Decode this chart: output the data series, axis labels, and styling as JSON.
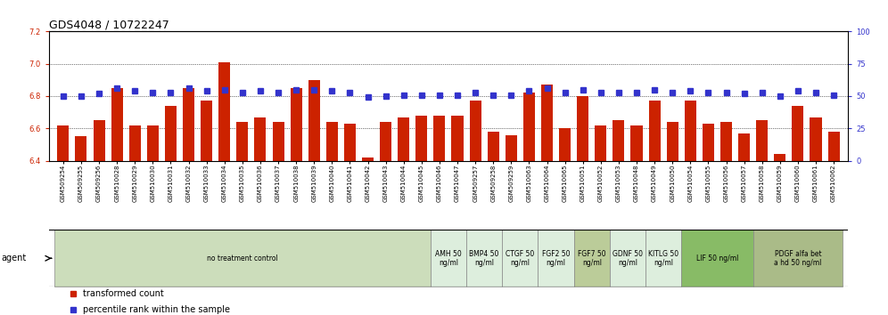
{
  "title": "GDS4048 / 10722247",
  "samples": [
    "GSM509254",
    "GSM509255",
    "GSM509256",
    "GSM510028",
    "GSM510029",
    "GSM510030",
    "GSM510031",
    "GSM510032",
    "GSM510033",
    "GSM510034",
    "GSM510035",
    "GSM510036",
    "GSM510037",
    "GSM510038",
    "GSM510039",
    "GSM510040",
    "GSM510041",
    "GSM510042",
    "GSM510043",
    "GSM510044",
    "GSM510045",
    "GSM510046",
    "GSM510047",
    "GSM509257",
    "GSM509258",
    "GSM509259",
    "GSM510063",
    "GSM510064",
    "GSM510065",
    "GSM510051",
    "GSM510052",
    "GSM510053",
    "GSM510048",
    "GSM510049",
    "GSM510050",
    "GSM510054",
    "GSM510055",
    "GSM510056",
    "GSM510057",
    "GSM510058",
    "GSM510059",
    "GSM510060",
    "GSM510061",
    "GSM510062"
  ],
  "bar_values": [
    6.62,
    6.55,
    6.65,
    6.85,
    6.62,
    6.62,
    6.74,
    6.85,
    6.77,
    7.01,
    6.64,
    6.67,
    6.64,
    6.85,
    6.9,
    6.64,
    6.63,
    6.42,
    6.64,
    6.67,
    6.68,
    6.68,
    6.68,
    6.77,
    6.58,
    6.56,
    6.82,
    6.87,
    6.6,
    6.8,
    6.62,
    6.65,
    6.62,
    6.77,
    6.64,
    6.77,
    6.63,
    6.64,
    6.57,
    6.65,
    6.44,
    6.74,
    6.67,
    6.58
  ],
  "dot_values": [
    50,
    50,
    52,
    56,
    54,
    53,
    53,
    56,
    54,
    55,
    53,
    54,
    53,
    55,
    55,
    54,
    53,
    49,
    50,
    51,
    51,
    51,
    51,
    53,
    51,
    51,
    54,
    56,
    53,
    55,
    53,
    53,
    53,
    55,
    53,
    54,
    53,
    53,
    52,
    53,
    50,
    54,
    53,
    51
  ],
  "ylim_left": [
    6.4,
    7.2
  ],
  "ylim_right": [
    0,
    100
  ],
  "yticks_left": [
    6.4,
    6.6,
    6.8,
    7.0,
    7.2
  ],
  "yticks_right": [
    0,
    25,
    50,
    75,
    100
  ],
  "bar_color": "#CC2200",
  "dot_color": "#3333CC",
  "agent_groups": [
    {
      "label": "no treatment control",
      "start": 0,
      "end": 21,
      "color": "#DDEECC"
    },
    {
      "label": "AMH 50\nng/ml",
      "start": 21,
      "end": 23,
      "color": "#EEFFEE"
    },
    {
      "label": "BMP4 50\nng/ml",
      "start": 23,
      "end": 25,
      "color": "#EEFFEE"
    },
    {
      "label": "CTGF 50\nng/ml",
      "start": 25,
      "end": 27,
      "color": "#EEFFEE"
    },
    {
      "label": "FGF2 50\nng/ml",
      "start": 27,
      "end": 29,
      "color": "#EEFFEE"
    },
    {
      "label": "FGF7 50\nng/ml",
      "start": 29,
      "end": 31,
      "color": "#CCDDAA"
    },
    {
      "label": "GDNF 50\nng/ml",
      "start": 31,
      "end": 33,
      "color": "#EEFFEE"
    },
    {
      "label": "KITLG 50\nng/ml",
      "start": 33,
      "end": 35,
      "color": "#EEFFEE"
    },
    {
      "label": "LIF 50 ng/ml",
      "start": 35,
      "end": 39,
      "color": "#99DD77"
    },
    {
      "label": "PDGF alfa bet\na hd 50 ng/ml",
      "start": 39,
      "end": 44,
      "color": "#BBDD99"
    }
  ],
  "legend_items": [
    {
      "label": "transformed count",
      "color": "#CC2200"
    },
    {
      "label": "percentile rank within the sample",
      "color": "#3333CC"
    }
  ],
  "title_fontsize": 9,
  "tick_fontsize": 6,
  "bar_width": 0.65
}
